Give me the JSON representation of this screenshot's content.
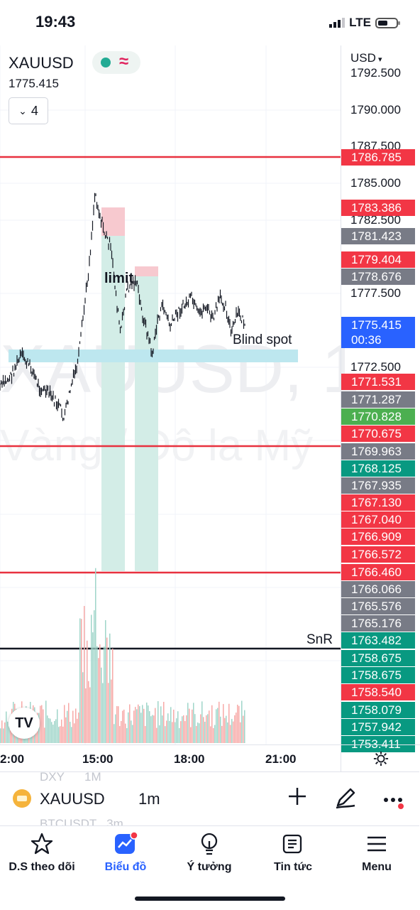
{
  "status_bar": {
    "time": "19:43",
    "network": "LTE"
  },
  "chart": {
    "symbol": "XAUUSD",
    "last_price": "1775.415",
    "indicator_count": "4",
    "currency": "USD",
    "watermark_symbol": "XAUUSD, 1",
    "watermark_name": "Vàng / Đô la Mỹ",
    "annotations": {
      "limit": "limit",
      "blind_spot": "Blind spot",
      "snr": "SnR"
    },
    "price_levels": [
      "1792.500",
      "1790.000",
      "1787.500",
      "1785.000",
      "1782.500",
      "1777.500",
      "1772.500"
    ],
    "price_tags": [
      {
        "value": "1786.785",
        "color": "#f23645"
      },
      {
        "value": "1783.386",
        "color": "#f23645"
      },
      {
        "value": "1781.423",
        "color": "#787b86"
      },
      {
        "value": "1779.404",
        "color": "#f23645"
      },
      {
        "value": "1778.676",
        "color": "#787b86"
      },
      {
        "value": "1771.531",
        "color": "#f23645"
      },
      {
        "value": "1771.287",
        "color": "#787b86"
      },
      {
        "value": "1770.828",
        "color": "#4caf50"
      },
      {
        "value": "1770.675",
        "color": "#f23645"
      },
      {
        "value": "1769.963",
        "color": "#787b86"
      },
      {
        "value": "1768.125",
        "color": "#089981"
      },
      {
        "value": "1767.935",
        "color": "#787b86"
      },
      {
        "value": "1767.130",
        "color": "#f23645"
      },
      {
        "value": "1767.040",
        "color": "#f23645"
      },
      {
        "value": "1766.909",
        "color": "#f23645"
      },
      {
        "value": "1766.572",
        "color": "#f23645"
      },
      {
        "value": "1766.460",
        "color": "#f23645"
      },
      {
        "value": "1766.066",
        "color": "#787b86"
      },
      {
        "value": "1765.576",
        "color": "#787b86"
      },
      {
        "value": "1765.176",
        "color": "#787b86"
      },
      {
        "value": "1763.482",
        "color": "#089981"
      },
      {
        "value": "1758.675",
        "color": "#089981"
      },
      {
        "value": "1758.675",
        "color": "#089981"
      },
      {
        "value": "1758.540",
        "color": "#f23645"
      },
      {
        "value": "1758.079",
        "color": "#089981"
      },
      {
        "value": "1757.942",
        "color": "#089981"
      },
      {
        "value": "1753.411",
        "color": "#089981"
      }
    ],
    "current_tag": {
      "value": "1775.415",
      "countdown": "00:36",
      "color": "#2962ff"
    },
    "time_labels": [
      "2:00",
      "15:00",
      "18:00",
      "21:00"
    ]
  },
  "symbol_bar": {
    "symbol": "XAUUSD",
    "interval": "1m",
    "ghost_above": "DXY      1M",
    "ghost_below": "BTCUSDT   3m"
  },
  "nav": [
    {
      "label": "D.S theo dõi",
      "icon": "star-icon"
    },
    {
      "label": "Biểu đồ",
      "icon": "chart-icon",
      "active": true
    },
    {
      "label": "Ý tưởng",
      "icon": "lightbulb-icon"
    },
    {
      "label": "Tin tức",
      "icon": "news-icon"
    },
    {
      "label": "Menu",
      "icon": "hamburger-icon"
    }
  ]
}
